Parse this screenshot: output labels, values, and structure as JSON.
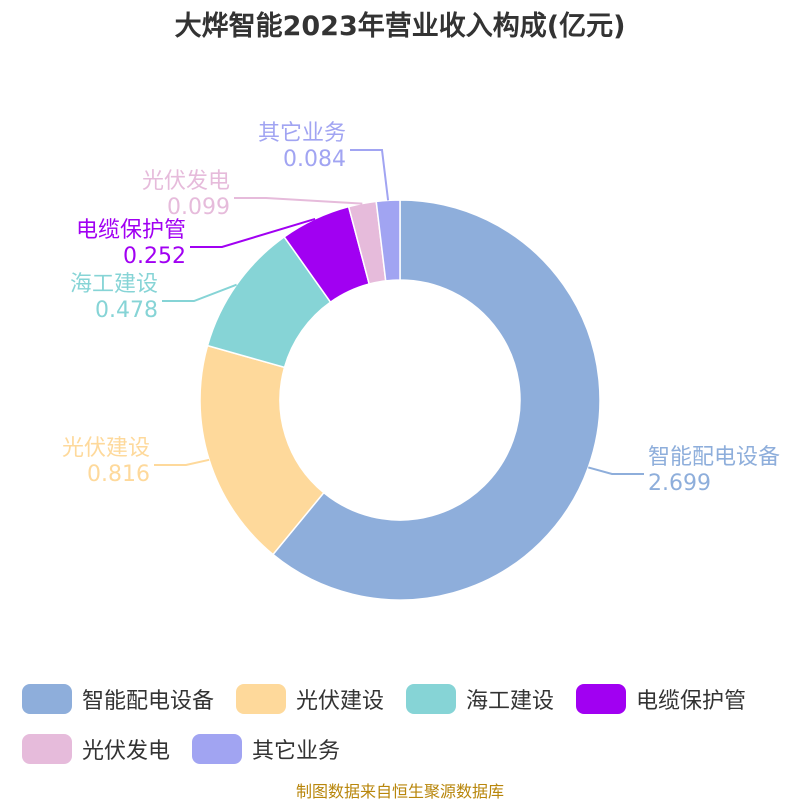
{
  "title": "大烨智能2023年营业收入构成(亿元)",
  "source_text": "制图数据来自恒生聚源数据库",
  "chart_data": {
    "type": "pie",
    "title": "大烨智能2023年营业收入构成(亿元)",
    "donut": true,
    "legend_position": "bottom",
    "series": [
      {
        "name": "智能配电设备",
        "value": 2.699,
        "value_label": "2.699",
        "color": "#8eaedb"
      },
      {
        "name": "光伏建设",
        "value": 0.816,
        "value_label": "0.816",
        "color": "#fed99b"
      },
      {
        "name": "海工建设",
        "value": 0.478,
        "value_label": "0.478",
        "color": "#86d4d6"
      },
      {
        "name": "电缆保护管",
        "value": 0.252,
        "value_label": "0.252",
        "color": "#a100f2"
      },
      {
        "name": "光伏发电",
        "value": 0.099,
        "value_label": "0.099",
        "color": "#e6bbdb"
      },
      {
        "name": "其它业务",
        "value": 0.084,
        "value_label": "0.084",
        "color": "#a1a4f2"
      }
    ]
  }
}
